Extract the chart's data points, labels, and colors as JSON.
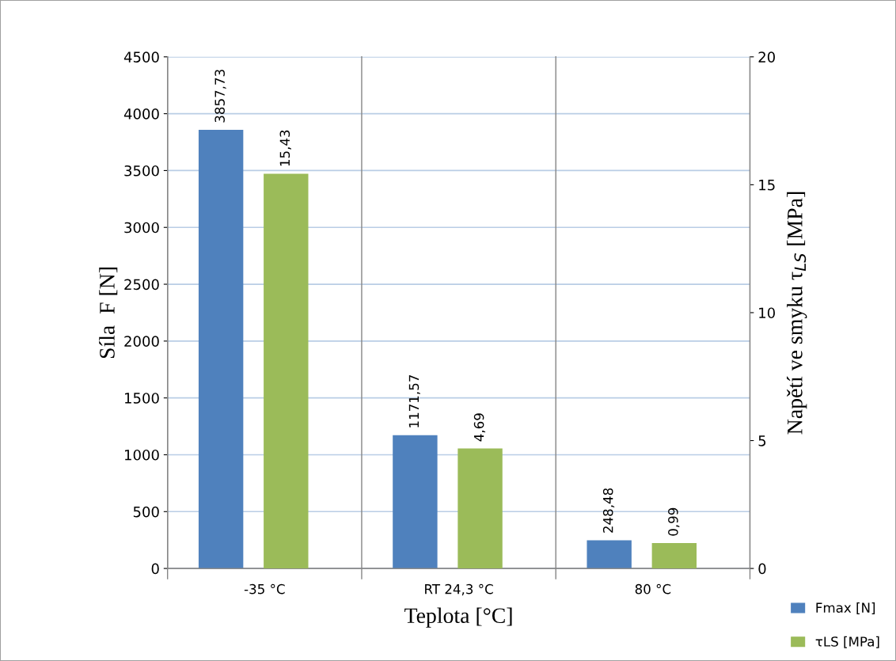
{
  "chart_data": {
    "type": "bar",
    "xlabel": "Teplota [°C]",
    "ylabel": "Síla  F [N]",
    "y2label": "Napětí ve smyku τ$_{LS}$ [MPa]",
    "categories": [
      "-35 °C",
      "RT 24,3 °C",
      "80 °C"
    ],
    "series": [
      {
        "name": "Fmax [N]",
        "color": "#4f81bd",
        "values": [
          3857.73,
          1171.57,
          248.48
        ],
        "value_labels": [
          "3857,73",
          "1171,57",
          "248,48"
        ]
      },
      {
        "name": "τLS [MPa]",
        "color": "#9bbb59",
        "values": [
          15.43,
          4.69,
          0.99
        ],
        "value_labels": [
          "15,43",
          "4,69",
          "0,99"
        ],
        "axis": "y2"
      }
    ],
    "ylim": [
      0,
      4500
    ],
    "yticks": [
      0,
      500,
      1000,
      1500,
      2000,
      2500,
      3000,
      3500,
      4000,
      4500
    ],
    "y2lim": [
      0,
      20
    ],
    "y2ticks": [
      0,
      5,
      10,
      15,
      20
    ],
    "grid": true,
    "legend": "bottom right"
  }
}
